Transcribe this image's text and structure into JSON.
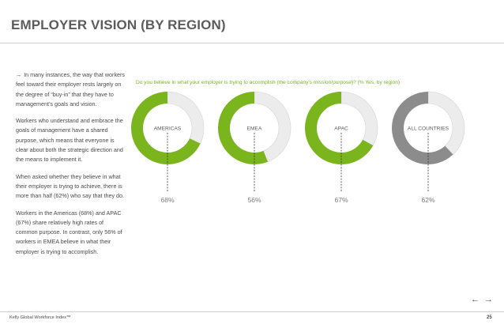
{
  "header": {
    "title": "EMPLOYER VISION (BY REGION)"
  },
  "body": {
    "paragraphs": [
      "In many instances, the way that workers feel toward their employer rests largely on the degree of “buy-in” that they have to management’s goals and vision.",
      "Workers who understand and embrace the goals of management have a shared purpose, which means that everyone is clear about both the strategic direction and the means to implement it.",
      "When asked whether they believe in what their employer is trying to achieve, there is more than half (62%) who say that they do.",
      "Workers in the Americas (68%) and APAC (67%) share relatively high rates of common purpose. In contrast, only 56% of workers in EMEA believe in what their employer is trying to accomplish."
    ]
  },
  "chart_data": {
    "type": "pie",
    "title": "Do you believe in what your employer is trying to accomplish (the company’s mission/purpose)? (% Yes, by region)",
    "categories": [
      "AMERICAS",
      "EMEA",
      "APAC",
      "ALL COUNTRIES"
    ],
    "values": [
      68,
      56,
      67,
      62
    ],
    "value_labels": [
      "68%",
      "56%",
      "67%",
      "62%"
    ],
    "colors": [
      "#7ab51d",
      "#7ab51d",
      "#7ab51d",
      "#8c8c8c"
    ],
    "remainder_color": "#ececec"
  },
  "footer": {
    "publisher": "Kelly Global Workforce Index™",
    "page_number": "25"
  },
  "navigation": {
    "prev_icon": "arrow-left-icon",
    "next_icon": "arrow-right-icon",
    "prev_glyph": "←",
    "next_glyph": "→"
  },
  "icons": {
    "paragraph_arrow": "→"
  }
}
